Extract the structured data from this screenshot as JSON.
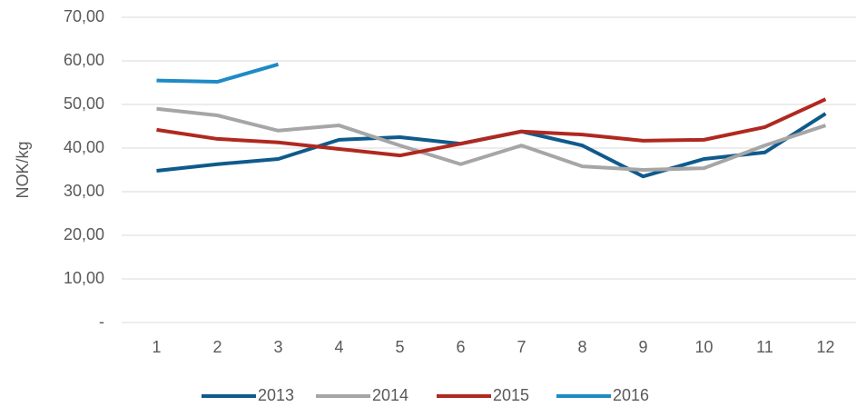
{
  "chart_data": {
    "type": "line",
    "y_label": "NOK/kg",
    "categories": [
      1,
      2,
      3,
      4,
      5,
      6,
      7,
      8,
      9,
      10,
      11,
      12
    ],
    "series": [
      {
        "name": "2013",
        "color": "#0f5a8c",
        "values": [
          34.8,
          36.3,
          37.5,
          41.9,
          42.5,
          41.0,
          43.8,
          40.6,
          33.5,
          37.5,
          39.0,
          47.9
        ]
      },
      {
        "name": "2014",
        "color": "#a6a6a6",
        "values": [
          49.0,
          47.5,
          44.0,
          45.2,
          40.6,
          36.3,
          40.6,
          35.8,
          35.0,
          35.4,
          40.6,
          45.2
        ]
      },
      {
        "name": "2015",
        "color": "#b0281f",
        "values": [
          44.2,
          42.1,
          41.3,
          39.8,
          38.3,
          41.0,
          43.8,
          43.1,
          41.7,
          41.9,
          44.8,
          51.2
        ]
      },
      {
        "name": "2016",
        "color": "#1f8ac6",
        "values": [
          55.5,
          55.2,
          59.2,
          null,
          null,
          null,
          null,
          null,
          null,
          null,
          null,
          null
        ]
      }
    ],
    "ylim": [
      0,
      70
    ],
    "yticks": [
      {
        "value": 0,
        "label": "-"
      },
      {
        "value": 10,
        "label": "10,00"
      },
      {
        "value": 20,
        "label": "20,00"
      },
      {
        "value": 30,
        "label": "30,00"
      },
      {
        "value": 40,
        "label": "40,00"
      },
      {
        "value": 50,
        "label": "50,00"
      },
      {
        "value": 60,
        "label": "60,00"
      },
      {
        "value": 70,
        "label": "70,00"
      }
    ],
    "grid": true,
    "legend": "bottom"
  }
}
